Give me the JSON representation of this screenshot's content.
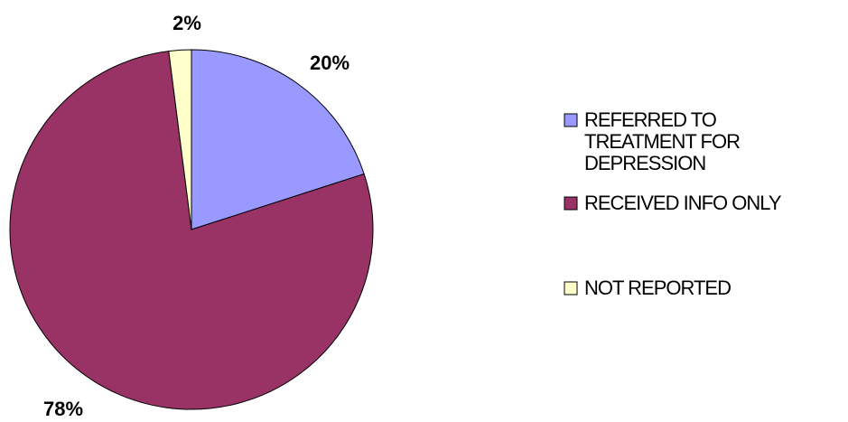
{
  "chart_data": {
    "type": "pie",
    "title": "",
    "categories": [
      "REFERRED TO TREATMENT FOR DEPRESSION",
      "RECEIVED INFO ONLY",
      "NOT REPORTED"
    ],
    "values": [
      20,
      78,
      2
    ],
    "data_labels": [
      "20%",
      "78%",
      "2%"
    ],
    "colors": [
      "#9999FF",
      "#993366",
      "#FFFFCC"
    ],
    "legend": {
      "placement": "right",
      "entries": [
        {
          "label": "REFERRED TO TREATMENT FOR DEPRESSION",
          "lines": [
            "REFERRED TO",
            "TREATMENT FOR",
            "DEPRESSION"
          ],
          "color": "#9999FF"
        },
        {
          "label": "RECEIVED INFO ONLY",
          "lines": [
            "RECEIVED INFO ONLY"
          ],
          "color": "#993366"
        },
        {
          "label": "NOT REPORTED",
          "lines": [
            "NOT REPORTED"
          ],
          "color": "#FFFFCC"
        }
      ]
    }
  }
}
